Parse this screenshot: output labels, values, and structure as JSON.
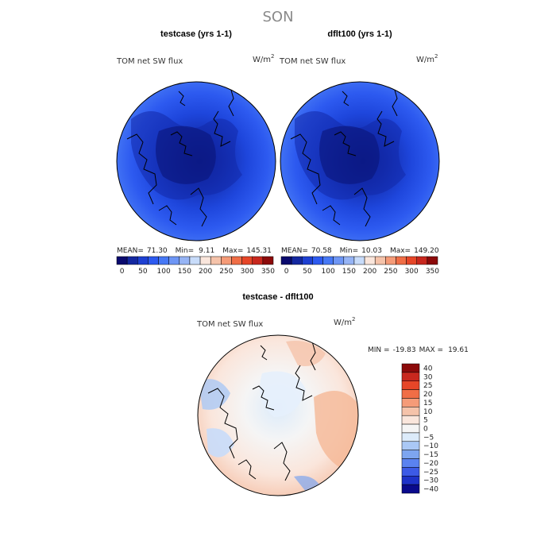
{
  "figure": {
    "title": "SON"
  },
  "chart_data": [
    {
      "type": "heatmap",
      "projection": "north polar stereographic",
      "title": "testcase (yrs 1-1)",
      "variable": "TOM net SW flux",
      "units": "W/m",
      "units_exp": "2",
      "stats": {
        "mean_label": "MEAN=",
        "mean": "71.30",
        "min_label": "Min=",
        "min": "9.11",
        "max_label": "Max=",
        "max": "145.31"
      },
      "colorbar": {
        "orientation": "horizontal",
        "levels": [
          0,
          25,
          50,
          75,
          100,
          125,
          150,
          175,
          200,
          225,
          250,
          275,
          300,
          325,
          350
        ],
        "tick_labels": [
          "0",
          "50",
          "100",
          "150",
          "200",
          "250",
          "300",
          "350"
        ],
        "colors": [
          "#0a0a6e",
          "#1428a0",
          "#1e40d2",
          "#2d5af0",
          "#4678f5",
          "#6e96f5",
          "#96b4f5",
          "#c8dcfa",
          "#fae6dc",
          "#f5c3aa",
          "#f59b78",
          "#f06e46",
          "#e64628",
          "#c8281e",
          "#8c0a0a"
        ]
      },
      "field_summary": {
        "pole_region": "lowest (dark blue, ~0-50)",
        "outer_region": "higher (~100-150)"
      }
    },
    {
      "type": "heatmap",
      "projection": "north polar stereographic",
      "title": "dflt100 (yrs 1-1)",
      "variable": "TOM net SW flux",
      "units": "W/m",
      "units_exp": "2",
      "stats": {
        "mean_label": "MEAN=",
        "mean": "70.58",
        "min_label": "Min=",
        "min": "10.03",
        "max_label": "Max=",
        "max": "149.20"
      },
      "colorbar": {
        "orientation": "horizontal",
        "levels": [
          0,
          25,
          50,
          75,
          100,
          125,
          150,
          175,
          200,
          225,
          250,
          275,
          300,
          325,
          350
        ],
        "tick_labels": [
          "0",
          "50",
          "100",
          "150",
          "200",
          "250",
          "300",
          "350"
        ],
        "colors": [
          "#0a0a6e",
          "#1428a0",
          "#1e40d2",
          "#2d5af0",
          "#4678f5",
          "#6e96f5",
          "#96b4f5",
          "#c8dcfa",
          "#fae6dc",
          "#f5c3aa",
          "#f59b78",
          "#f06e46",
          "#e64628",
          "#c8281e",
          "#8c0a0a"
        ]
      },
      "field_summary": {
        "pole_region": "lowest (dark blue, ~0-50)",
        "outer_region": "higher (~100-150)"
      }
    },
    {
      "type": "heatmap",
      "projection": "north polar stereographic",
      "title": "testcase - dflt100",
      "variable": "TOM net SW flux",
      "units": "W/m",
      "units_exp": "2",
      "stats": {
        "min_label": "MIN =",
        "min": "-19.83",
        "max_label": "MAX =",
        "max": "19.61"
      },
      "colorbar": {
        "orientation": "vertical",
        "tick_labels": [
          "40",
          "30",
          "25",
          "20",
          "15",
          "10",
          "5",
          "0",
          "−5",
          "−10",
          "−15",
          "−20",
          "−25",
          "−30",
          "−40"
        ],
        "colors": [
          "#8c0a0a",
          "#c8281e",
          "#e64628",
          "#f06e46",
          "#f59b78",
          "#f5c3aa",
          "#fae6dc",
          "#f5f5f5",
          "#dcebfa",
          "#aac8f5",
          "#7da5f0",
          "#5a82f0",
          "#3c5ae6",
          "#1e32c8",
          "#0a0a8c"
        ]
      },
      "field_summary": {
        "pole_region": "near zero (light blue / white)",
        "eastern_sector": "positive (+5 to +15, orange)",
        "western_sector": "mixed, slightly negative (-5 to -10, light blue)"
      }
    }
  ]
}
